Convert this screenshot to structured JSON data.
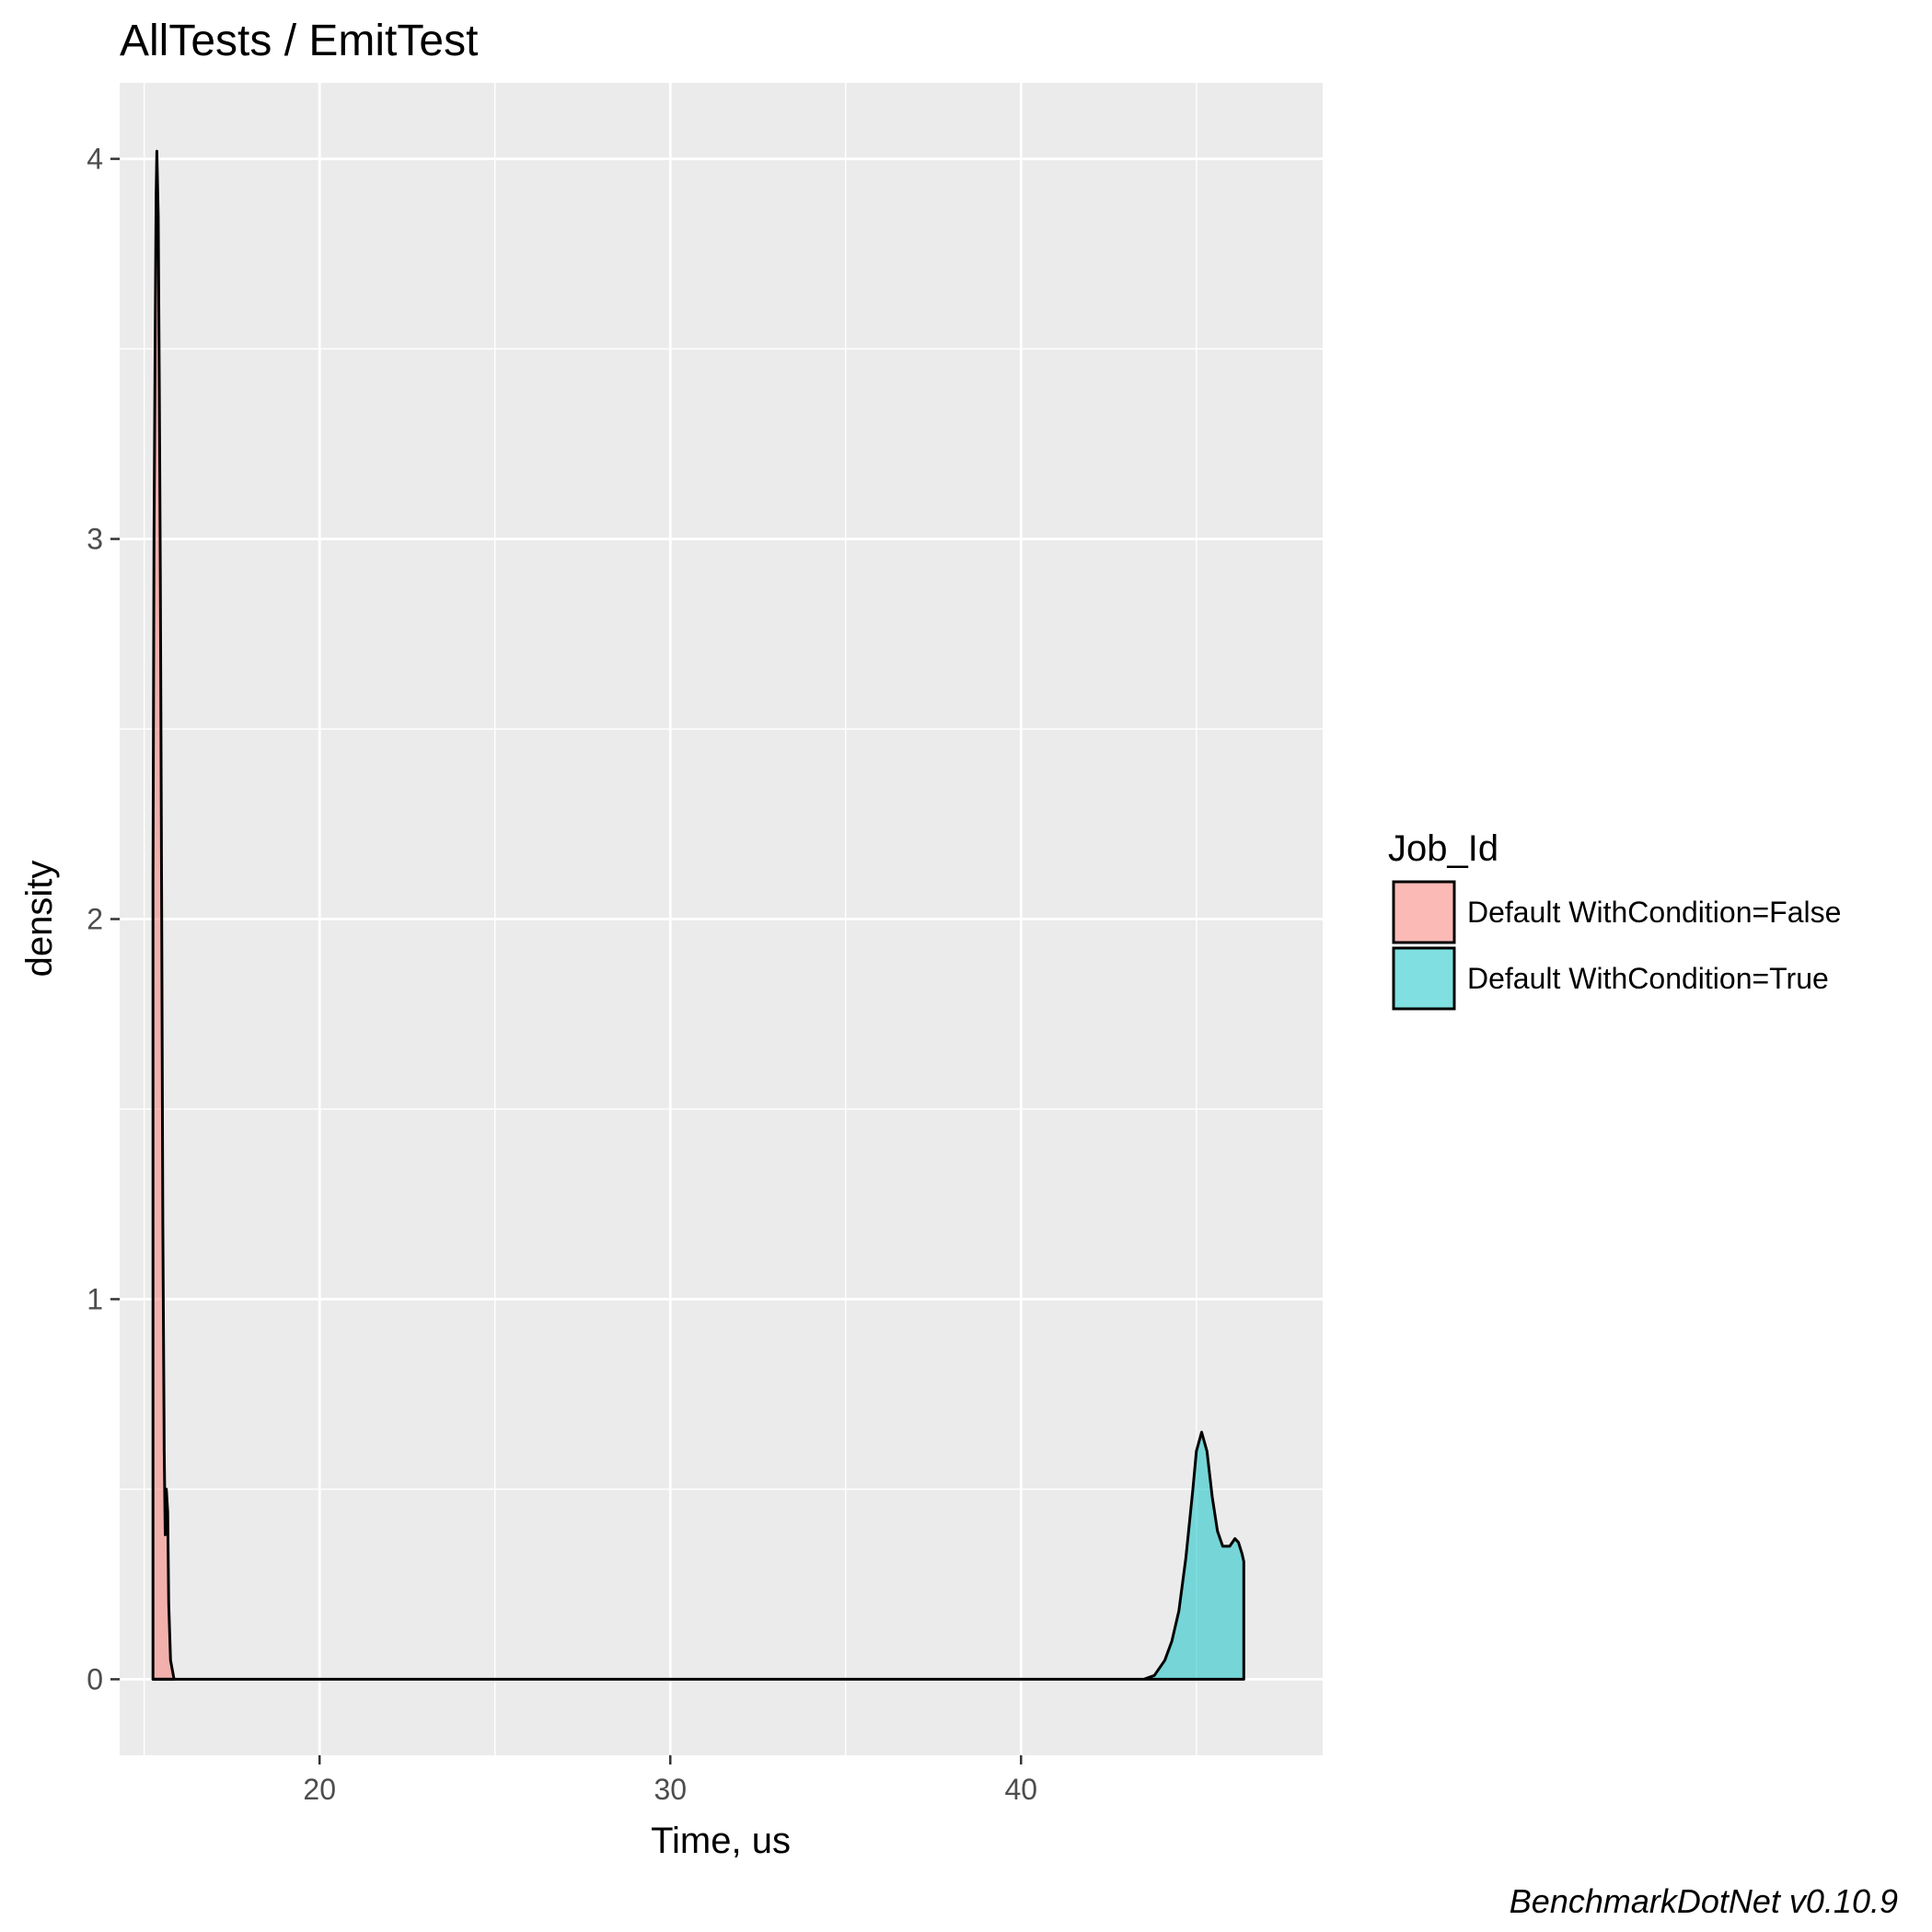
{
  "chart_data": {
    "type": "area",
    "title": "AllTests / EmitTest",
    "xlabel": "Time, us",
    "ylabel": "density",
    "xlim": [
      14.3,
      48.6
    ],
    "ylim": [
      -0.2,
      4.2
    ],
    "x_ticks": [
      20,
      30,
      40
    ],
    "y_ticks": [
      0,
      1,
      2,
      3,
      4
    ],
    "grid": true,
    "legend_title": "Job_Id",
    "legend_position": "right",
    "caption": "BenchmarkDotNet v0.10.9",
    "series": [
      {
        "name": "Default WithCondition=False",
        "color": "#F8766D",
        "points": [
          [
            15.25,
            0
          ],
          [
            15.25,
            2.1
          ],
          [
            15.28,
            3.0
          ],
          [
            15.31,
            3.5
          ],
          [
            15.34,
            3.9
          ],
          [
            15.36,
            4.02
          ],
          [
            15.4,
            3.85
          ],
          [
            15.43,
            3.4
          ],
          [
            15.46,
            2.9
          ],
          [
            15.5,
            2.0
          ],
          [
            15.53,
            1.2
          ],
          [
            15.57,
            0.6
          ],
          [
            15.6,
            0.38
          ],
          [
            15.63,
            0.5
          ],
          [
            15.67,
            0.44
          ],
          [
            15.7,
            0.2
          ],
          [
            15.75,
            0.05
          ],
          [
            15.85,
            0.0
          ]
        ]
      },
      {
        "name": "Default WithCondition=True",
        "color": "#00BFC4",
        "points": [
          [
            15.25,
            0
          ],
          [
            43.5,
            0
          ],
          [
            43.8,
            0.01
          ],
          [
            44.1,
            0.05
          ],
          [
            44.3,
            0.1
          ],
          [
            44.5,
            0.18
          ],
          [
            44.7,
            0.32
          ],
          [
            44.9,
            0.5
          ],
          [
            45.0,
            0.6
          ],
          [
            45.15,
            0.65
          ],
          [
            45.3,
            0.6
          ],
          [
            45.45,
            0.48
          ],
          [
            45.6,
            0.39
          ],
          [
            45.75,
            0.35
          ],
          [
            45.95,
            0.35
          ],
          [
            46.1,
            0.37
          ],
          [
            46.2,
            0.36
          ],
          [
            46.3,
            0.33
          ],
          [
            46.35,
            0.31
          ],
          [
            46.35,
            0.0
          ]
        ]
      }
    ]
  }
}
